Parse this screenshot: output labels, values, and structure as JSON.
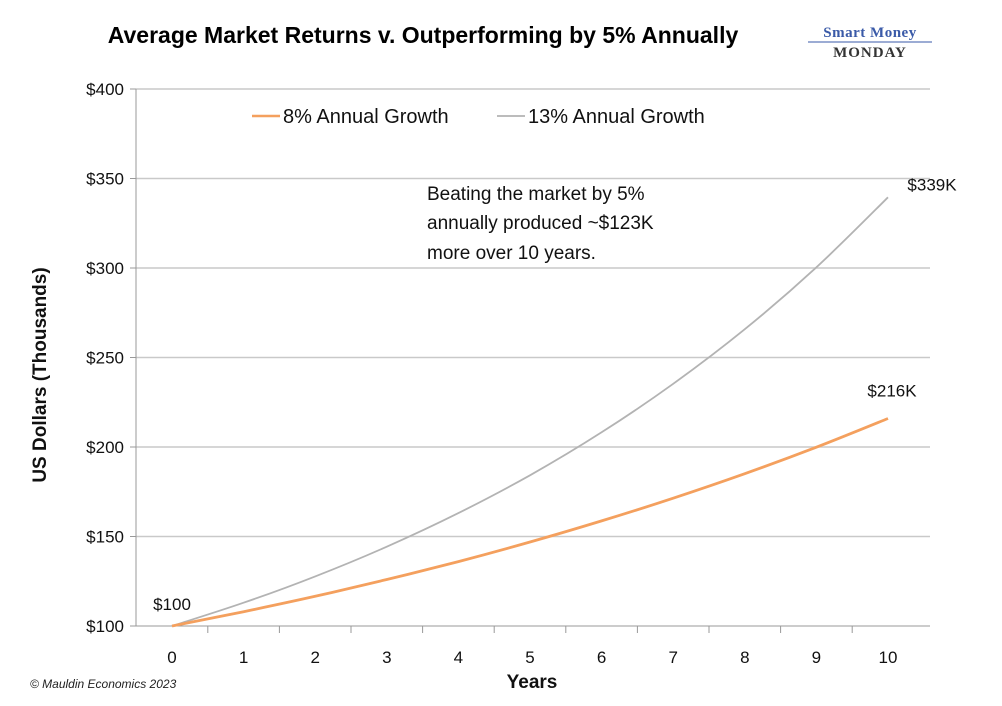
{
  "brand": {
    "line1": "Smart Money",
    "line2": "MONDAY"
  },
  "credit": "© Mauldin Economics 2023",
  "annotation": [
    "Beating the market by 5%",
    "annually produced ~$123K",
    "more over 10 years."
  ],
  "colors": {
    "series_8": "#f4a05e",
    "series_13": "#b3b3b3",
    "grid": "#c9c9c9",
    "axis": "#999999"
  },
  "chart_data": {
    "type": "line",
    "title": "Average Market Returns v. Outperforming by 5% Annually",
    "xlabel": "Years",
    "ylabel": "US Dollars (Thousands)",
    "x": [
      0,
      1,
      2,
      3,
      4,
      5,
      6,
      7,
      8,
      9,
      10
    ],
    "xticks": [
      "0",
      "1",
      "2",
      "3",
      "4",
      "5",
      "6",
      "7",
      "8",
      "9",
      "10"
    ],
    "ylim": [
      100,
      400
    ],
    "yticks": [
      {
        "value": 100,
        "label": "$100"
      },
      {
        "value": 150,
        "label": "$150"
      },
      {
        "value": 200,
        "label": "$200"
      },
      {
        "value": 250,
        "label": "$250"
      },
      {
        "value": 300,
        "label": "$300"
      },
      {
        "value": 350,
        "label": "$350"
      },
      {
        "value": 400,
        "label": "$400"
      }
    ],
    "grid": true,
    "legend_position": "top",
    "series": [
      {
        "name": "8% Annual Growth",
        "color": "#f4a05e",
        "values": [
          100,
          108,
          116.6,
          126,
          136,
          146.9,
          158.7,
          171.4,
          185.1,
          199.9,
          215.9
        ]
      },
      {
        "name": "13% Annual Growth",
        "color": "#b3b3b3",
        "values": [
          100,
          113,
          127.7,
          144.3,
          163.1,
          184.2,
          208.2,
          235.3,
          265.8,
          300.4,
          339.5
        ]
      }
    ],
    "point_labels": [
      {
        "series": 0,
        "index": 0,
        "text": "$100"
      },
      {
        "series": 0,
        "index": 10,
        "text": "$216K"
      },
      {
        "series": 1,
        "index": 10,
        "text": "$339K"
      }
    ]
  }
}
